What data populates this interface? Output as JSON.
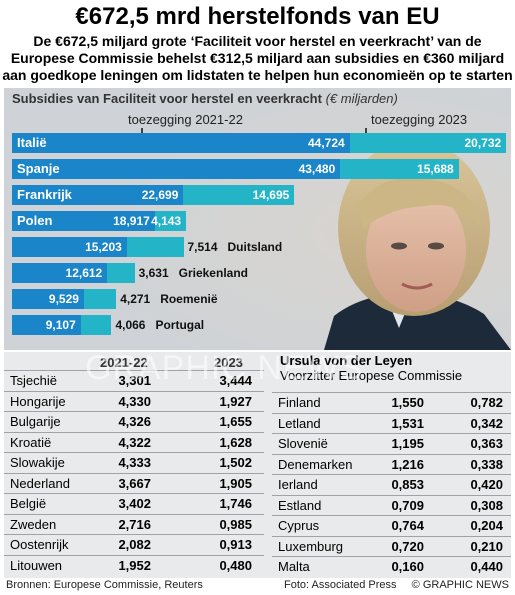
{
  "header": {
    "title": "€672,5 mrd herstelfonds van EU",
    "subtitle_lines": [
      "De €672,5 miljard grote ‘Faciliteit voor herstel en veerkracht’ van de",
      "Europese Commissie behelst €312,5 miljard aan subsidies en €360 miljard",
      "aan goedkope leningen om lidstaten te helpen hun economieën op te starten"
    ]
  },
  "colors": {
    "series_2021": "#1b85c9",
    "series_2023": "#23b5c7",
    "panel": "#e9eaeb",
    "chart_bg": "#dfe2e5"
  },
  "chart_data": {
    "type": "bar",
    "title": "Subsidies van Faciliteit voor herstel en veerkracht",
    "unit": "(€ miljarden)",
    "orientation": "horizontal",
    "stacked": true,
    "categories": [
      "Italië",
      "Spanje",
      "Frankrijk",
      "Polen",
      "Duitsland",
      "Griekenland",
      "Roemenië",
      "Portugal"
    ],
    "series": [
      {
        "name": "toezegging 2021-22",
        "values": [
          44.724,
          43.48,
          22.699,
          18.917,
          15.203,
          12.612,
          9.529,
          9.107
        ],
        "labels": [
          "44,724",
          "43,480",
          "22,699",
          "18,917",
          "15,203",
          "12,612",
          "9,529",
          "9,107"
        ]
      },
      {
        "name": "toezegging 2023",
        "values": [
          20.732,
          15.688,
          14.695,
          4.143,
          7.514,
          3.631,
          4.271,
          4.066
        ],
        "labels": [
          "20,732",
          "15,688",
          "14,695",
          "4,143",
          "7,514",
          "3,631",
          "4,271",
          "4,066"
        ]
      }
    ],
    "label_inside_bar": [
      true,
      true,
      true,
      true,
      false,
      false,
      false,
      false
    ]
  },
  "photo": {
    "caption_name": "Ursula von der Leyen",
    "caption_role": "Voorzitter Europese Commissie",
    "watermark": "GRAPHIC NEWS"
  },
  "table_left": {
    "headers": [
      "2021-22",
      "2023"
    ],
    "rows": [
      {
        "country": "Tsjechië",
        "v1": "3,301",
        "v2": "3,444"
      },
      {
        "country": "Hongarije",
        "v1": "4,330",
        "v2": "1,927"
      },
      {
        "country": "Bulgarije",
        "v1": "4,326",
        "v2": "1,655"
      },
      {
        "country": "Kroatië",
        "v1": "4,322",
        "v2": "1,628"
      },
      {
        "country": "Slowakije",
        "v1": "4,333",
        "v2": "1,502"
      },
      {
        "country": "Nederland",
        "v1": "3,667",
        "v2": "1,905"
      },
      {
        "country": "België",
        "v1": "3,402",
        "v2": "1,746"
      },
      {
        "country": "Zweden",
        "v1": "2,716",
        "v2": "0,985"
      },
      {
        "country": "Oostenrijk",
        "v1": "2,082",
        "v2": "0,913"
      },
      {
        "country": "Litouwen",
        "v1": "1,952",
        "v2": "0,480"
      }
    ]
  },
  "table_right": {
    "rows": [
      {
        "country": "Finland",
        "v1": "1,550",
        "v2": "0,782"
      },
      {
        "country": "Letland",
        "v1": "1,531",
        "v2": "0,342"
      },
      {
        "country": "Slovenië",
        "v1": "1,195",
        "v2": "0,363"
      },
      {
        "country": "Denemarken",
        "v1": "1,216",
        "v2": "0,338"
      },
      {
        "country": "Ierland",
        "v1": "0,853",
        "v2": "0,420"
      },
      {
        "country": "Estland",
        "v1": "0,709",
        "v2": "0,308"
      },
      {
        "country": "Cyprus",
        "v1": "0,764",
        "v2": "0,204"
      },
      {
        "country": "Luxemburg",
        "v1": "0,720",
        "v2": "0,210"
      },
      {
        "country": "Malta",
        "v1": "0,160",
        "v2": "0,440"
      }
    ]
  },
  "footer": {
    "sources": "Bronnen: Europese Commissie, Reuters",
    "photo_credit": "Foto: Associated Press",
    "copyright": "© GRAPHIC NEWS"
  }
}
